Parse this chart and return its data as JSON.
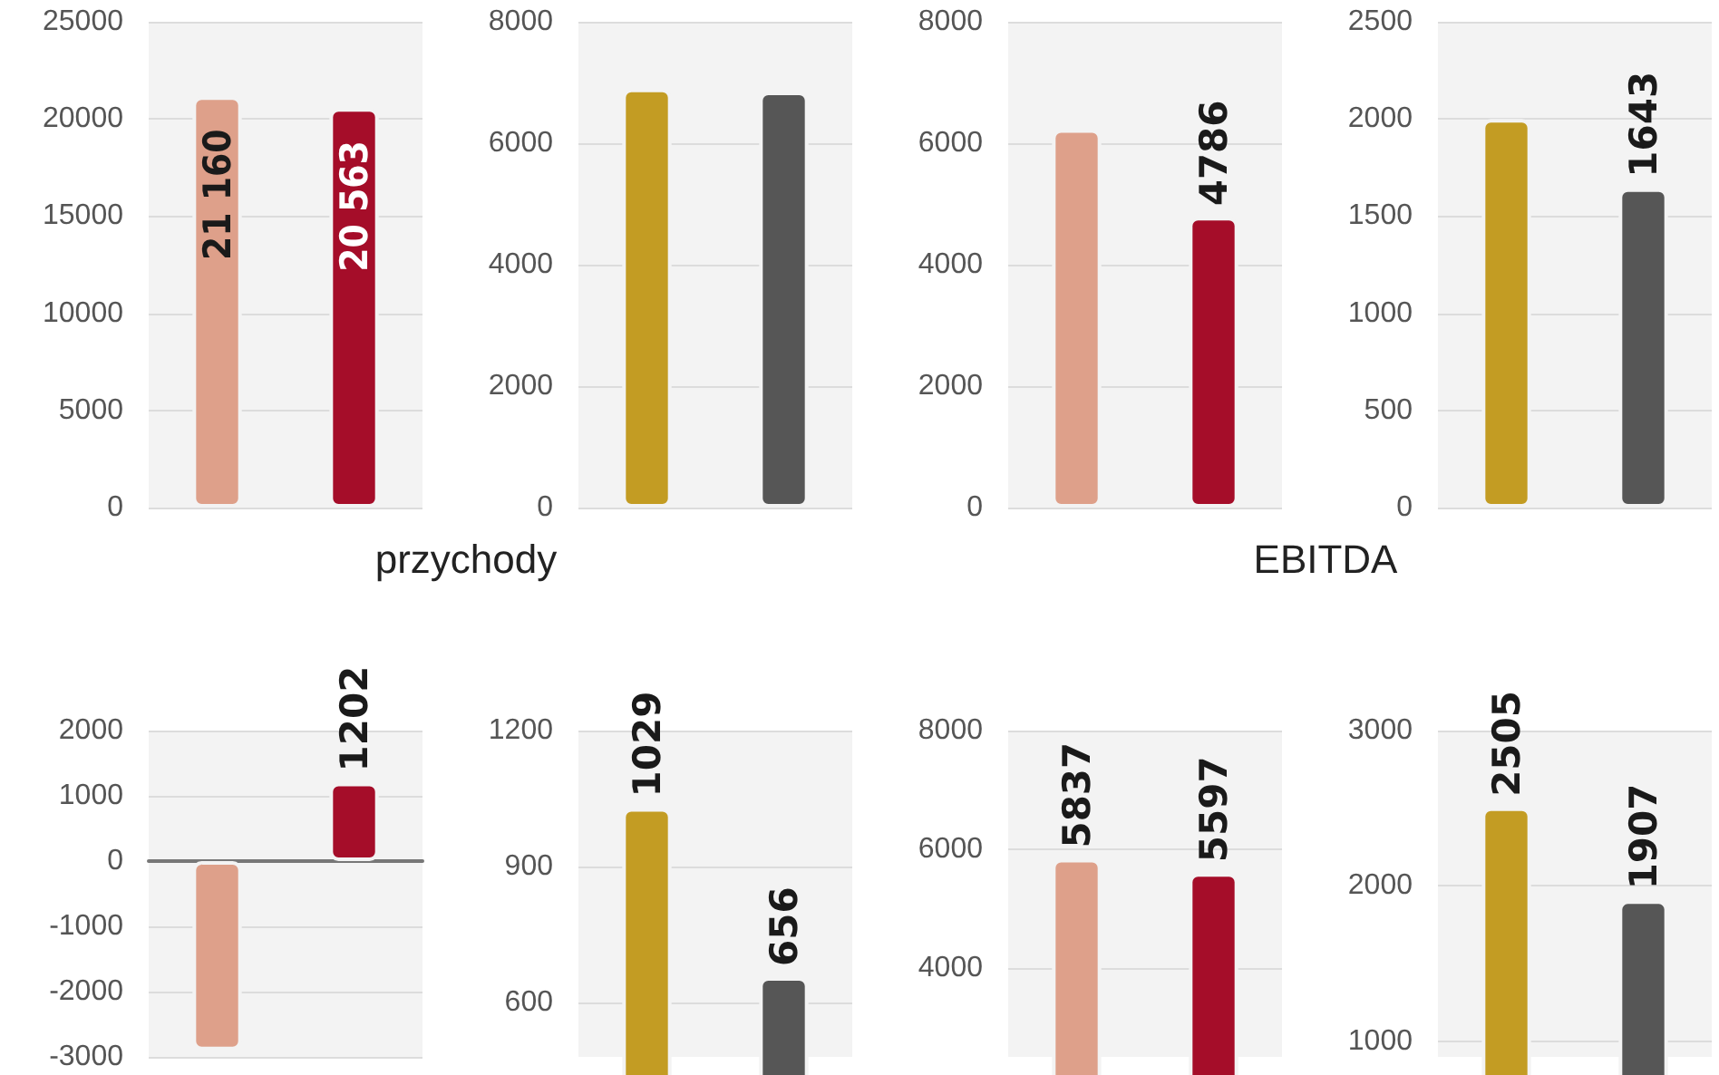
{
  "chart_data": [
    {
      "type": "bar",
      "xlabel": "przychody",
      "categories": [
        null,
        null
      ],
      "values": [
        21160,
        20563
      ],
      "colors": [
        "#dea08a",
        "#a50d29"
      ],
      "value_labels": [
        "21 160",
        "20 563"
      ],
      "ylim": [
        0,
        25000
      ],
      "yticks": [
        0,
        5000,
        10000,
        15000,
        20000,
        25000
      ],
      "grid": "y"
    },
    {
      "type": "bar",
      "categories": [
        null,
        null
      ],
      "values": [
        6900,
        6850
      ],
      "colors": [
        "#c39c23",
        "#565656"
      ],
      "value_labels": [
        null,
        null
      ],
      "ylim": [
        0,
        8000
      ],
      "yticks": [
        0,
        2000,
        4000,
        6000,
        8000
      ],
      "grid": "y"
    },
    {
      "type": "bar",
      "xlabel": "EBITDA",
      "categories": [
        null,
        null
      ],
      "values": [
        6230,
        4786
      ],
      "colors": [
        "#dea08a",
        "#a50d29"
      ],
      "value_labels": [
        null,
        "4786"
      ],
      "ylim": [
        0,
        8000
      ],
      "yticks": [
        0,
        2000,
        4000,
        6000,
        8000
      ],
      "grid": "y"
    },
    {
      "type": "bar",
      "categories": [
        null,
        null
      ],
      "values": [
        2000,
        1643
      ],
      "colors": [
        "#c39c23",
        "#565656"
      ],
      "value_labels": [
        null,
        "1643"
      ],
      "ylim": [
        0,
        2500
      ],
      "yticks": [
        0,
        500,
        1000,
        1500,
        2000,
        2500
      ],
      "grid": "y"
    },
    {
      "type": "bar",
      "categories": [
        null,
        null
      ],
      "values": [
        -2900,
        1202
      ],
      "colors": [
        "#dea08a",
        "#a50d29"
      ],
      "value_labels": [
        null,
        "1202"
      ],
      "ylim": [
        -3000,
        2000
      ],
      "yticks": [
        -3000,
        -2000,
        -1000,
        0,
        1000,
        2000
      ],
      "grid": "y"
    },
    {
      "type": "bar",
      "categories": [
        null,
        null
      ],
      "values": [
        1029,
        656
      ],
      "colors": [
        "#c39c23",
        "#565656"
      ],
      "data_labels": true,
      "ylim": [
        480,
        1200
      ],
      "yticks": [
        600,
        900,
        1200
      ],
      "grid": "y"
    },
    {
      "type": "bar",
      "categories": [
        null,
        null
      ],
      "values": [
        5837,
        5597
      ],
      "colors": [
        "#dea08a",
        "#a50d29"
      ],
      "data_labels": true,
      "ylim": [
        2500,
        8000
      ],
      "yticks": [
        4000,
        6000,
        8000
      ],
      "grid": "y"
    },
    {
      "type": "bar",
      "categories": [
        null,
        null
      ],
      "values": [
        2505,
        1907
      ],
      "colors": [
        "#c39c23",
        "#565656"
      ],
      "data_labels": true,
      "ylim": [
        900,
        3000
      ],
      "yticks": [
        1000,
        2000,
        3000
      ],
      "grid": "y"
    }
  ]
}
